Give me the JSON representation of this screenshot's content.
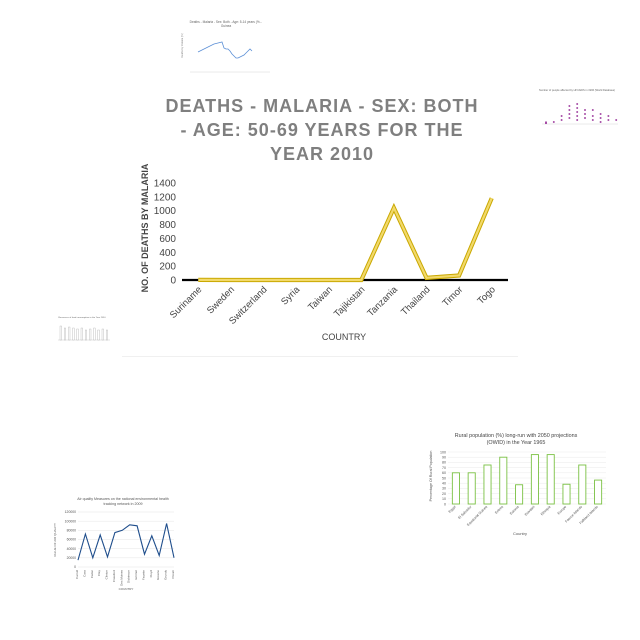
{
  "main": {
    "title_lines": [
      "DEATHS - MALARIA - SEX: BOTH",
      "- AGE: 50-69 YEARS FOR THE",
      "YEAR 2010"
    ],
    "chart_data": {
      "type": "line",
      "title": "DEATHS - MALARIA - SEX: BOTH - AGE: 50-69 YEARS FOR THE YEAR 2010",
      "xlabel": "COUNTRY",
      "ylabel": "NO. OF DEATHS BY MALARIA",
      "categories": [
        "Suriname",
        "Sweden",
        "Switzerland",
        "Syria",
        "Taiwan",
        "Tajikistan",
        "Tanzania",
        "Thailand",
        "Timor",
        "Togo"
      ],
      "values": [
        2,
        0,
        0,
        0,
        0,
        0,
        1040,
        30,
        65,
        1180
      ],
      "ylim": [
        0,
        1400
      ],
      "yticks": [
        "0",
        "200",
        "400",
        "600",
        "800",
        "1000",
        "1200",
        "1400"
      ],
      "grid": false,
      "colors": {
        "line": "#f2d96b",
        "line_edge": "#c9a800",
        "axis": "#000000",
        "title": "#7f7f7f"
      }
    }
  },
  "thumbnails": {
    "top": {
      "title_lines": [
        "Deaths - Malaria - Sex: Both - Age: 5-14 years (%...",
        "Guinea"
      ],
      "ylabel": "Deaths by malaria (%)",
      "color": "#5b8fd6"
    },
    "right": {
      "title": "Number of people affected by HIV/AIDS in 1996 (World Database)",
      "color": "#a64ca6"
    },
    "left": {
      "title": "Resources of food consumption in the Year 2010"
    },
    "bottom_left": {
      "chart_data": {
        "type": "line",
        "title": "Air quality Measures on the national environmental health tracking network in 2009",
        "xlabel": "COUNTRY",
        "ylabel": "VALUE OF AIR QUALITY",
        "categories": [
          "Carroll",
          "Cass",
          "Cedar",
          "Clay",
          "Clinton",
          "Crawford",
          "Des Moines",
          "Dickinson",
          "Emmet",
          "Fayette",
          "Floyd",
          "Greene",
          "Grundy",
          "Pocah"
        ],
        "values": [
          15000,
          72000,
          20000,
          70000,
          22000,
          75000,
          80000,
          92000,
          90000,
          28000,
          68000,
          25000,
          95000,
          20000
        ],
        "ylim": [
          0,
          120000
        ],
        "yticks": [
          "0",
          "20000",
          "40000",
          "60000",
          "80000",
          "100000",
          "120000"
        ],
        "color": "#1f4e8c"
      }
    },
    "bottom_right": {
      "chart_data": {
        "type": "bar",
        "title": "Rural population (%) long-run with 2050 projections (OWID) in the Year 1965",
        "xlabel": "Country",
        "ylabel": "Percentage Of Rural Population",
        "categories": [
          "Egypt",
          "El Salvador",
          "Equatorial Guinea",
          "Eritrea",
          "Estonia",
          "Eswatini",
          "Ethiopia",
          "Europe",
          "Faeroe Islands",
          "Falkland Islands"
        ],
        "values": [
          60,
          60,
          75,
          90,
          37,
          95,
          95,
          38,
          75,
          46
        ],
        "ylim": [
          0,
          100
        ],
        "yticks": [
          "0",
          "10",
          "20",
          "30",
          "40",
          "50",
          "60",
          "70",
          "80",
          "90",
          "100"
        ],
        "color": "#7ac143"
      }
    }
  }
}
